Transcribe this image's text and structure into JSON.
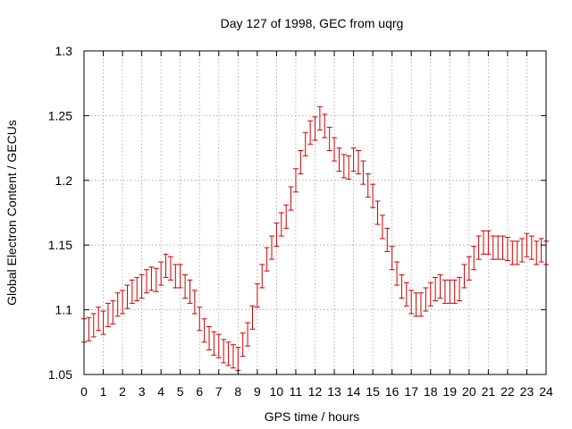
{
  "chart_data": {
    "type": "scatter",
    "title": "Day 127 of 1998, GEC from uqrg",
    "xlabel": "GPS time / hours",
    "ylabel": "Global Electron Content / GECUs",
    "xlim": [
      0,
      24
    ],
    "ylim": [
      1.05,
      1.3
    ],
    "grid": true,
    "xticks": [
      "0",
      "1",
      "2",
      "3",
      "4",
      "5",
      "6",
      "7",
      "8",
      "9",
      "10",
      "11",
      "12",
      "13",
      "14",
      "15",
      "16",
      "17",
      "18",
      "19",
      "20",
      "21",
      "22",
      "23",
      "24"
    ],
    "yticks": [
      "1.05",
      "1.1",
      "1.15",
      "1.2",
      "1.25",
      "1.3"
    ],
    "error_bar": 0.009,
    "color": "#cc0000",
    "series": [
      {
        "name": "GEC",
        "x": [
          0,
          0.25,
          0.5,
          0.75,
          1,
          1.25,
          1.5,
          1.75,
          2,
          2.25,
          2.5,
          2.75,
          3,
          3.25,
          3.5,
          3.75,
          4,
          4.25,
          4.5,
          4.75,
          5,
          5.25,
          5.5,
          5.75,
          6,
          6.25,
          6.5,
          6.75,
          7,
          7.25,
          7.5,
          7.75,
          8,
          8.25,
          8.5,
          8.75,
          9,
          9.25,
          9.5,
          9.75,
          10,
          10.25,
          10.5,
          10.75,
          11,
          11.25,
          11.5,
          11.75,
          12,
          12.25,
          12.5,
          12.75,
          13,
          13.25,
          13.5,
          13.75,
          14,
          14.25,
          14.5,
          14.75,
          15,
          15.25,
          15.5,
          15.75,
          16,
          16.25,
          16.5,
          16.75,
          17,
          17.25,
          17.5,
          17.75,
          18,
          18.25,
          18.5,
          18.75,
          19,
          19.25,
          19.5,
          19.75,
          20,
          20.25,
          20.5,
          20.75,
          21,
          21.25,
          21.5,
          21.75,
          22,
          22.25,
          22.5,
          22.75,
          23,
          23.25,
          23.5,
          23.75,
          24
        ],
        "y": [
          1.084,
          1.085,
          1.088,
          1.093,
          1.09,
          1.096,
          1.098,
          1.104,
          1.106,
          1.11,
          1.114,
          1.116,
          1.118,
          1.122,
          1.124,
          1.123,
          1.128,
          1.134,
          1.132,
          1.126,
          1.126,
          1.118,
          1.114,
          1.106,
          1.093,
          1.084,
          1.078,
          1.074,
          1.072,
          1.068,
          1.066,
          1.064,
          1.062,
          1.073,
          1.081,
          1.094,
          1.111,
          1.126,
          1.139,
          1.148,
          1.158,
          1.166,
          1.172,
          1.186,
          1.2,
          1.214,
          1.228,
          1.237,
          1.24,
          1.248,
          1.242,
          1.232,
          1.224,
          1.216,
          1.211,
          1.21,
          1.216,
          1.214,
          1.206,
          1.196,
          1.188,
          1.175,
          1.164,
          1.154,
          1.14,
          1.128,
          1.118,
          1.112,
          1.106,
          1.104,
          1.104,
          1.108,
          1.112,
          1.116,
          1.118,
          1.114,
          1.114,
          1.114,
          1.116,
          1.126,
          1.132,
          1.14,
          1.148,
          1.152,
          1.152,
          1.148,
          1.148,
          1.148,
          1.147,
          1.144,
          1.144,
          1.146,
          1.15,
          1.148,
          1.144,
          1.146,
          1.144
        ]
      }
    ]
  }
}
